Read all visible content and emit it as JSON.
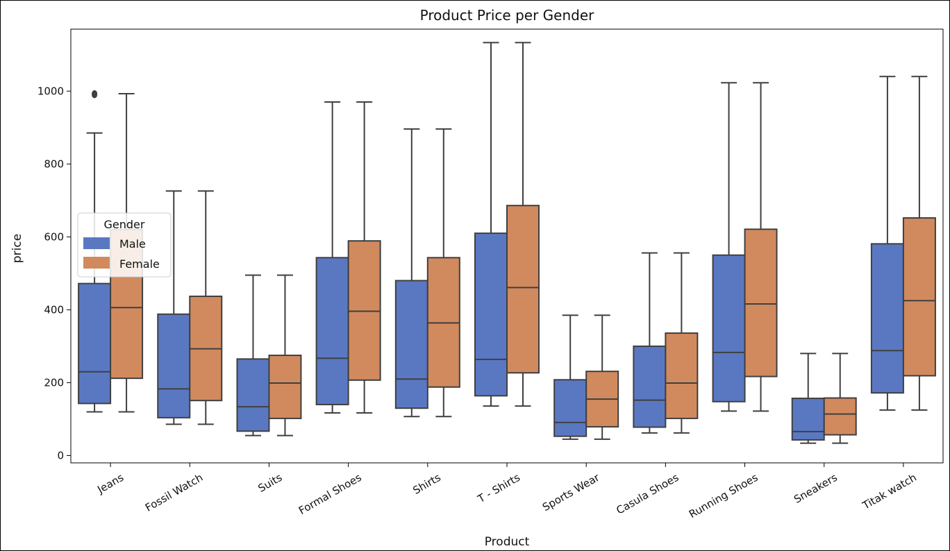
{
  "chart_data": {
    "type": "box",
    "title": "Product Price per Gender",
    "xlabel": "Product",
    "ylabel": "price",
    "ylim": [
      -20,
      1170
    ],
    "yticks": [
      0,
      200,
      400,
      600,
      800,
      1000
    ],
    "legend": {
      "title": "Gender",
      "placement": "center-left",
      "entries": [
        "Male",
        "Female"
      ]
    },
    "colors": {
      "Male": "#5a78c2",
      "Female": "#d18a5e",
      "line": "#3f3f3f"
    },
    "categories": [
      "Jeans",
      "Fossil Watch",
      "Suits",
      "Formal Shoes",
      "Shirts",
      "T - Shirts",
      "Sports Wear",
      "Casula Shoes",
      "Running Shoes",
      "Sneakers",
      "Titak watch"
    ],
    "series": [
      {
        "name": "Male",
        "boxes": [
          {
            "whislo": 120,
            "q1": 143,
            "med": 230,
            "q3": 472,
            "whishi": 885,
            "fliers": [
              990,
              993
            ]
          },
          {
            "whislo": 86,
            "q1": 104,
            "med": 183,
            "q3": 388,
            "whishi": 726,
            "fliers": []
          },
          {
            "whislo": 55,
            "q1": 67,
            "med": 134,
            "q3": 265,
            "whishi": 495,
            "fliers": []
          },
          {
            "whislo": 117,
            "q1": 140,
            "med": 267,
            "q3": 543,
            "whishi": 970,
            "fliers": []
          },
          {
            "whislo": 107,
            "q1": 130,
            "med": 210,
            "q3": 480,
            "whishi": 896,
            "fliers": []
          },
          {
            "whislo": 136,
            "q1": 164,
            "med": 264,
            "q3": 610,
            "whishi": 1133,
            "fliers": []
          },
          {
            "whislo": 45,
            "q1": 53,
            "med": 91,
            "q3": 208,
            "whishi": 385,
            "fliers": []
          },
          {
            "whislo": 62,
            "q1": 78,
            "med": 152,
            "q3": 300,
            "whishi": 556,
            "fliers": []
          },
          {
            "whislo": 122,
            "q1": 148,
            "med": 283,
            "q3": 550,
            "whishi": 1023,
            "fliers": []
          },
          {
            "whislo": 34,
            "q1": 43,
            "med": 66,
            "q3": 157,
            "whishi": 280,
            "fliers": []
          },
          {
            "whislo": 125,
            "q1": 172,
            "med": 288,
            "q3": 581,
            "whishi": 1040,
            "fliers": []
          }
        ]
      },
      {
        "name": "Female",
        "boxes": [
          {
            "whislo": 120,
            "q1": 212,
            "med": 406,
            "q3": 620,
            "whishi": 993,
            "fliers": []
          },
          {
            "whislo": 86,
            "q1": 151,
            "med": 293,
            "q3": 437,
            "whishi": 726,
            "fliers": []
          },
          {
            "whislo": 55,
            "q1": 102,
            "med": 199,
            "q3": 275,
            "whishi": 495,
            "fliers": []
          },
          {
            "whislo": 117,
            "q1": 207,
            "med": 396,
            "q3": 589,
            "whishi": 970,
            "fliers": []
          },
          {
            "whislo": 107,
            "q1": 188,
            "med": 364,
            "q3": 543,
            "whishi": 896,
            "fliers": []
          },
          {
            "whislo": 136,
            "q1": 227,
            "med": 461,
            "q3": 686,
            "whishi": 1133,
            "fliers": []
          },
          {
            "whislo": 45,
            "q1": 79,
            "med": 155,
            "q3": 231,
            "whishi": 385,
            "fliers": []
          },
          {
            "whislo": 62,
            "q1": 102,
            "med": 199,
            "q3": 336,
            "whishi": 556,
            "fliers": []
          },
          {
            "whislo": 122,
            "q1": 217,
            "med": 416,
            "q3": 621,
            "whishi": 1023,
            "fliers": []
          },
          {
            "whislo": 34,
            "q1": 57,
            "med": 114,
            "q3": 158,
            "whishi": 280,
            "fliers": []
          },
          {
            "whislo": 125,
            "q1": 219,
            "med": 425,
            "q3": 652,
            "whishi": 1040,
            "fliers": []
          }
        ]
      }
    ]
  }
}
